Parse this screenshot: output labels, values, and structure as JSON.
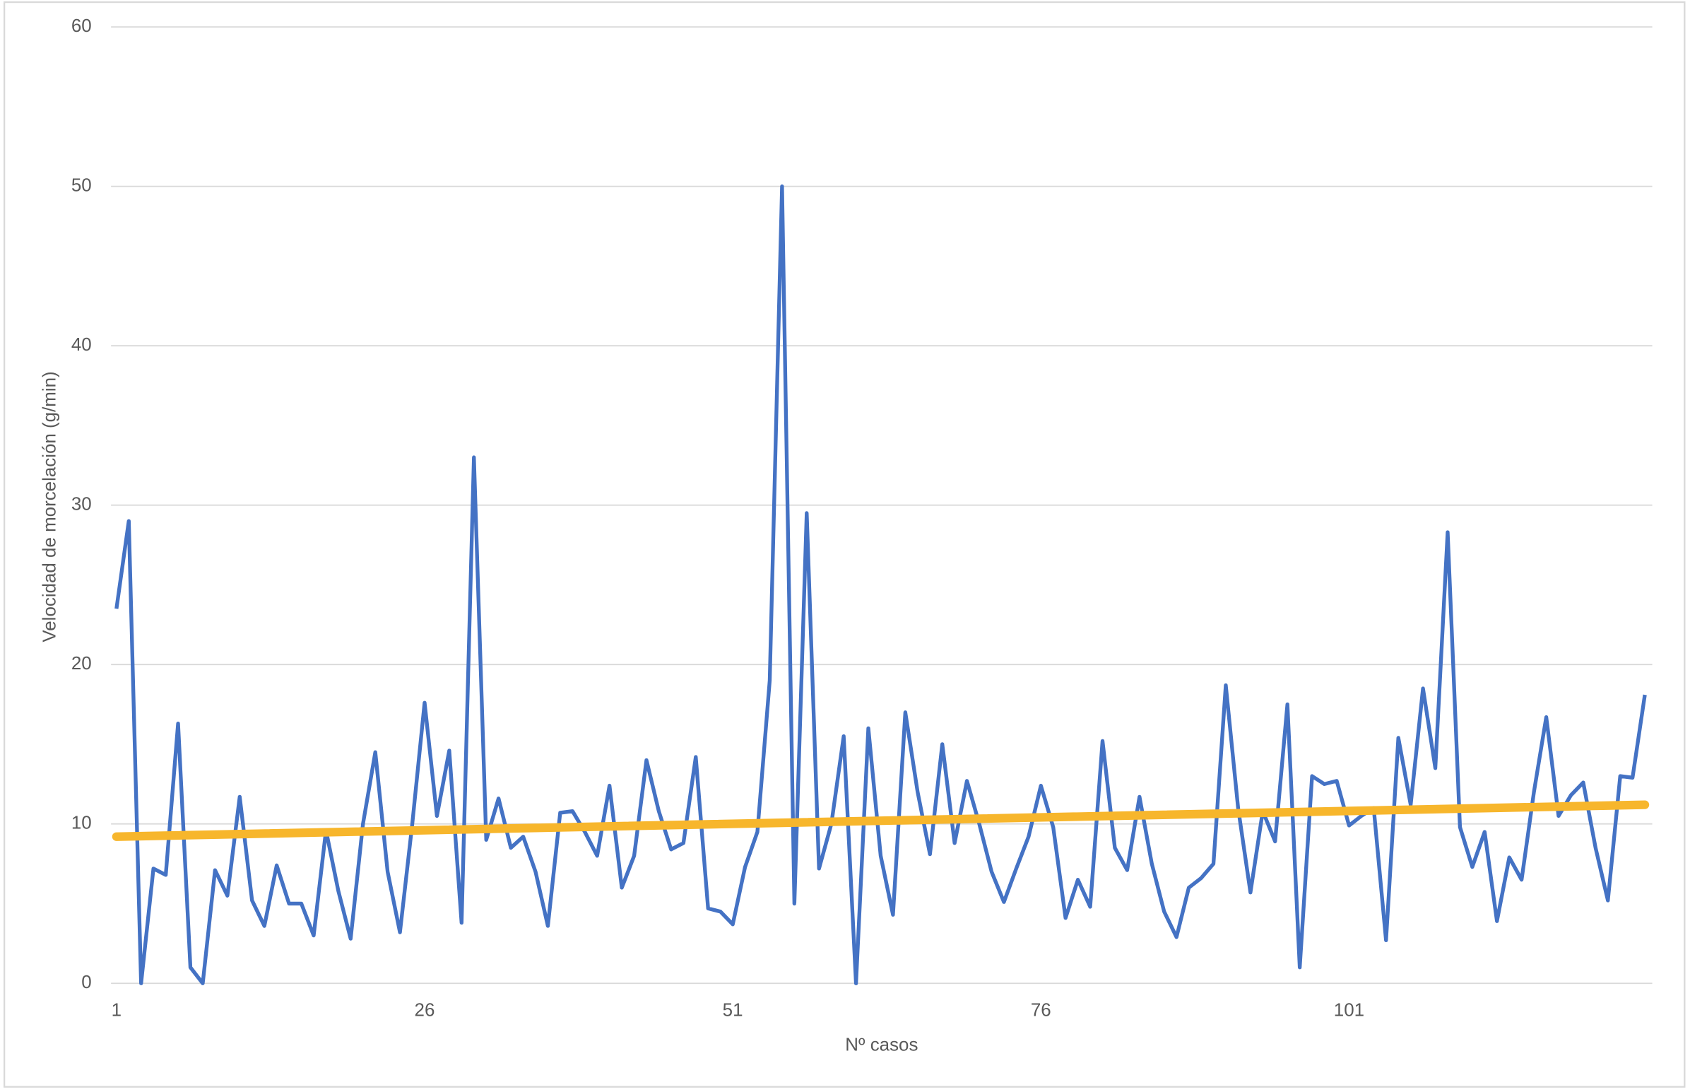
{
  "chart_data": {
    "type": "line",
    "xlabel": "Nº casos",
    "ylabel": "Velocidad de morcelación (g/min)",
    "x": [
      1,
      2,
      3,
      4,
      5,
      6,
      7,
      8,
      9,
      10,
      11,
      12,
      13,
      14,
      15,
      16,
      17,
      18,
      19,
      20,
      21,
      22,
      23,
      24,
      25,
      26,
      27,
      28,
      29,
      30,
      31,
      32,
      33,
      34,
      35,
      36,
      37,
      38,
      39,
      40,
      41,
      42,
      43,
      44,
      45,
      46,
      47,
      48,
      49,
      50,
      51,
      52,
      53,
      54,
      55,
      56,
      57,
      58,
      59,
      60,
      61,
      62,
      63,
      64,
      65,
      66,
      67,
      68,
      69,
      70,
      71,
      72,
      73,
      74,
      75,
      76,
      77,
      78,
      79,
      80,
      81,
      82,
      83,
      84,
      85,
      86,
      87,
      88,
      89,
      90,
      91,
      92,
      93,
      94,
      95,
      96,
      97,
      98,
      99,
      100,
      101,
      102,
      103,
      104,
      105,
      106,
      107,
      108,
      109,
      110,
      111,
      112,
      113,
      114,
      115,
      116,
      117,
      118,
      119,
      120,
      121,
      122,
      123,
      124,
      125
    ],
    "series": [
      {
        "color": "#4472c4",
        "values": [
          23.5,
          29,
          0,
          7.2,
          6.8,
          16.3,
          1,
          0,
          7.1,
          5.5,
          11.7,
          5.2,
          3.6,
          7.4,
          5,
          5,
          3,
          9.6,
          5.8,
          2.8,
          10,
          14.5,
          7,
          3.2,
          10,
          17.6,
          10.5,
          14.6,
          3.8,
          33,
          9,
          11.6,
          8.5,
          9.2,
          7,
          3.6,
          10.7,
          10.8,
          9.5,
          8,
          12.4,
          6,
          8,
          14,
          10.8,
          8.4,
          8.8,
          14.2,
          4.7,
          4.5,
          3.7,
          7.3,
          9.5,
          19,
          50,
          5,
          29.5,
          7.2,
          10,
          15.5,
          0,
          16,
          8,
          4.3,
          17,
          12,
          8.1,
          15,
          8.8,
          12.7,
          10,
          7,
          5.1,
          7.2,
          9.2,
          12.4,
          9.8,
          4.1,
          6.5,
          4.8,
          15.2,
          8.5,
          7.1,
          11.7,
          7.5,
          4.5,
          2.9,
          6,
          6.6,
          7.5,
          18.7,
          11,
          5.7,
          10.8,
          8.9,
          17.5,
          1,
          13,
          12.5,
          12.7,
          9.9,
          10.5,
          11,
          2.7,
          15.4,
          11.2,
          18.5,
          13.5,
          28.3,
          9.8,
          7.3,
          9.5,
          3.9,
          7.9,
          6.5,
          12,
          16.7,
          10.5,
          11.8,
          12.6,
          8.5,
          5.2,
          13,
          12.9,
          18.1
        ]
      }
    ],
    "trendline": {
      "color": "#f7b62c",
      "x": [
        1,
        125
      ],
      "values": [
        9.2,
        11.2
      ]
    },
    "xlim": [
      0.56,
      125.6
    ],
    "xticks": [
      1,
      26,
      51,
      76,
      101
    ],
    "ylim": [
      0,
      60
    ],
    "yticks": [
      0,
      10,
      20,
      30,
      40,
      50,
      60
    ],
    "grid": true
  }
}
